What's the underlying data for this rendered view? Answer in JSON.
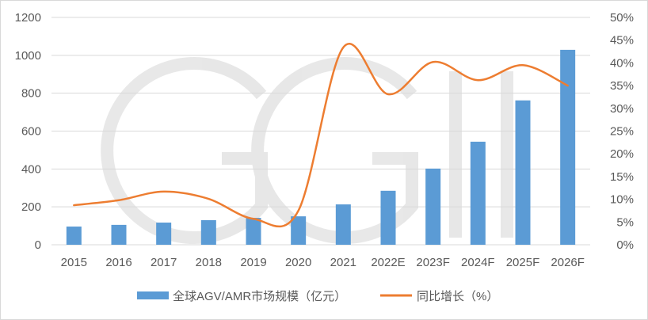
{
  "chart_data": {
    "type": "bar+line",
    "categories": [
      "2015",
      "2016",
      "2017",
      "2018",
      "2019",
      "2020",
      "2021",
      "2022E",
      "2023F",
      "2024F",
      "2025F",
      "2026F"
    ],
    "series": [
      {
        "name": "全球AGV/AMR市场规模（亿元）",
        "type": "bar",
        "axis": "left",
        "color": "#5b9bd5",
        "values": [
          96,
          105,
          117,
          130,
          142,
          150,
          213,
          285,
          402,
          544,
          762,
          1029
        ]
      },
      {
        "name": "同比增长（%）",
        "type": "line",
        "axis": "right",
        "color": "#ed7d31",
        "values": [
          8.7,
          9.8,
          11.7,
          10.1,
          5.7,
          7.5,
          43.4,
          33.1,
          40.2,
          36.2,
          39.5,
          35.0
        ]
      }
    ],
    "left_axis": {
      "min": 0,
      "max": 1200,
      "step": 200,
      "ticks": [
        "0",
        "200",
        "400",
        "600",
        "800",
        "1000",
        "1200"
      ]
    },
    "right_axis": {
      "min": 0,
      "max": 50,
      "step": 5,
      "ticks": [
        "0%",
        "5%",
        "10%",
        "15%",
        "20%",
        "25%",
        "30%",
        "35%",
        "40%",
        "45%",
        "50%"
      ]
    },
    "grid": true,
    "legend_position": "bottom",
    "watermark": "GGII"
  }
}
